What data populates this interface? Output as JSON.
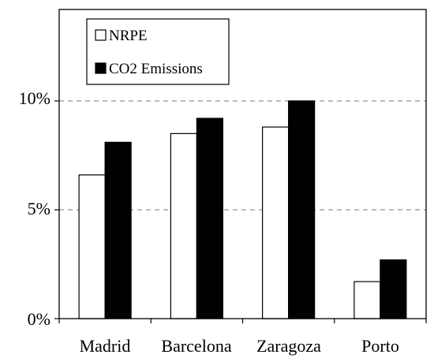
{
  "chart_data": {
    "type": "bar",
    "title": "",
    "xlabel": "",
    "ylabel": "",
    "categories": [
      "Madrid",
      "Barcelona",
      "Zaragoza",
      "Porto"
    ],
    "series": [
      {
        "name": "NRPE",
        "values": [
          6.6,
          8.5,
          8.8,
          1.7
        ],
        "color": "#ffffff"
      },
      {
        "name": "CO2 Emissions",
        "values": [
          8.1,
          9.2,
          10.0,
          2.7
        ],
        "color": "#000000"
      }
    ],
    "ylim": [
      0,
      14.2
    ],
    "yticks": [
      {
        "value": 0,
        "label": "0%"
      },
      {
        "value": 5,
        "label": "5%"
      },
      {
        "value": 10,
        "label": "10%"
      }
    ],
    "grid": "horizontal dashed at 5% and 10%",
    "legend": {
      "placement": "top-left",
      "entries": [
        "NRPE",
        "CO2 Emissions"
      ]
    }
  }
}
